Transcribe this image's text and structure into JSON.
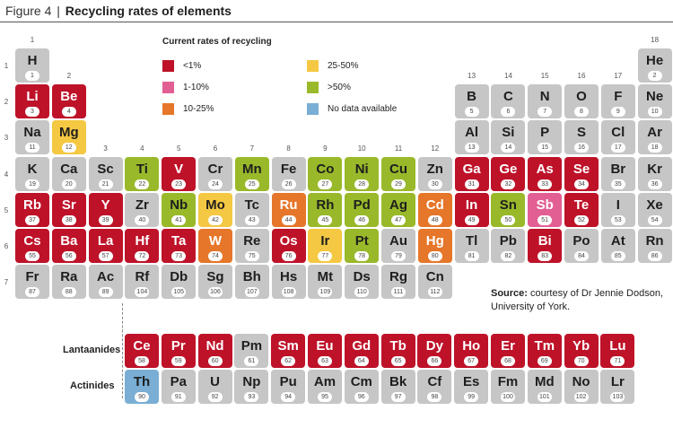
{
  "title": {
    "figure": "Figure 4",
    "separator": "|",
    "text": "Recycling rates of elements"
  },
  "legend": {
    "title": "Current rates of recycling",
    "items": [
      {
        "key": "r",
        "label": "<1%",
        "color": "#be1229"
      },
      {
        "key": "p",
        "label": "1-10%",
        "color": "#e25f94"
      },
      {
        "key": "o",
        "label": "10-25%",
        "color": "#e5762a"
      },
      {
        "key": "y",
        "label": "25-50%",
        "color": "#f4c842"
      },
      {
        "key": "g",
        "label": ">50%",
        "color": "#99b92a"
      },
      {
        "key": "b",
        "label": "No data available",
        "color": "#7aaed4"
      }
    ]
  },
  "default_color": "#c6c6c6",
  "group_labels": [
    "1",
    "2",
    "3",
    "4",
    "5",
    "6",
    "7",
    "8",
    "9",
    "10",
    "11",
    "12",
    "13",
    "14",
    "15",
    "16",
    "17",
    "18"
  ],
  "period_labels": [
    "1",
    "2",
    "3",
    "4",
    "5",
    "6",
    "7"
  ],
  "elements": [
    {
      "s": "H",
      "n": 1,
      "p": 1,
      "g": 1,
      "c": ""
    },
    {
      "s": "He",
      "n": 2,
      "p": 1,
      "g": 18,
      "c": ""
    },
    {
      "s": "Li",
      "n": 3,
      "p": 2,
      "g": 1,
      "c": "r"
    },
    {
      "s": "Be",
      "n": 4,
      "p": 2,
      "g": 2,
      "c": "r"
    },
    {
      "s": "B",
      "n": 5,
      "p": 2,
      "g": 13,
      "c": ""
    },
    {
      "s": "C",
      "n": 6,
      "p": 2,
      "g": 14,
      "c": ""
    },
    {
      "s": "N",
      "n": 7,
      "p": 2,
      "g": 15,
      "c": ""
    },
    {
      "s": "O",
      "n": 8,
      "p": 2,
      "g": 16,
      "c": ""
    },
    {
      "s": "F",
      "n": 9,
      "p": 2,
      "g": 17,
      "c": ""
    },
    {
      "s": "Ne",
      "n": 10,
      "p": 2,
      "g": 18,
      "c": ""
    },
    {
      "s": "Na",
      "n": 11,
      "p": 3,
      "g": 1,
      "c": ""
    },
    {
      "s": "Mg",
      "n": 12,
      "p": 3,
      "g": 2,
      "c": "y"
    },
    {
      "s": "Al",
      "n": 13,
      "p": 3,
      "g": 13,
      "c": ""
    },
    {
      "s": "Si",
      "n": 14,
      "p": 3,
      "g": 14,
      "c": ""
    },
    {
      "s": "P",
      "n": 15,
      "p": 3,
      "g": 15,
      "c": ""
    },
    {
      "s": "S",
      "n": 16,
      "p": 3,
      "g": 16,
      "c": ""
    },
    {
      "s": "Cl",
      "n": 17,
      "p": 3,
      "g": 17,
      "c": ""
    },
    {
      "s": "Ar",
      "n": 18,
      "p": 3,
      "g": 18,
      "c": ""
    },
    {
      "s": "K",
      "n": 19,
      "p": 4,
      "g": 1,
      "c": ""
    },
    {
      "s": "Ca",
      "n": 20,
      "p": 4,
      "g": 2,
      "c": ""
    },
    {
      "s": "Sc",
      "n": 21,
      "p": 4,
      "g": 3,
      "c": ""
    },
    {
      "s": "Ti",
      "n": 22,
      "p": 4,
      "g": 4,
      "c": "g"
    },
    {
      "s": "V",
      "n": 23,
      "p": 4,
      "g": 5,
      "c": "r"
    },
    {
      "s": "Cr",
      "n": 24,
      "p": 4,
      "g": 6,
      "c": ""
    },
    {
      "s": "Mn",
      "n": 25,
      "p": 4,
      "g": 7,
      "c": "g"
    },
    {
      "s": "Fe",
      "n": 26,
      "p": 4,
      "g": 8,
      "c": ""
    },
    {
      "s": "Co",
      "n": 27,
      "p": 4,
      "g": 9,
      "c": "g"
    },
    {
      "s": "Ni",
      "n": 28,
      "p": 4,
      "g": 10,
      "c": "g"
    },
    {
      "s": "Cu",
      "n": 29,
      "p": 4,
      "g": 11,
      "c": "g"
    },
    {
      "s": "Zn",
      "n": 30,
      "p": 4,
      "g": 12,
      "c": ""
    },
    {
      "s": "Ga",
      "n": 31,
      "p": 4,
      "g": 13,
      "c": "r"
    },
    {
      "s": "Ge",
      "n": 32,
      "p": 4,
      "g": 14,
      "c": "r"
    },
    {
      "s": "As",
      "n": 33,
      "p": 4,
      "g": 15,
      "c": "r"
    },
    {
      "s": "Se",
      "n": 34,
      "p": 4,
      "g": 16,
      "c": "r"
    },
    {
      "s": "Br",
      "n": 35,
      "p": 4,
      "g": 17,
      "c": ""
    },
    {
      "s": "Kr",
      "n": 36,
      "p": 4,
      "g": 18,
      "c": ""
    },
    {
      "s": "Rb",
      "n": 37,
      "p": 5,
      "g": 1,
      "c": "r"
    },
    {
      "s": "Sr",
      "n": 38,
      "p": 5,
      "g": 2,
      "c": "r"
    },
    {
      "s": "Y",
      "n": 39,
      "p": 5,
      "g": 3,
      "c": "r"
    },
    {
      "s": "Zr",
      "n": 40,
      "p": 5,
      "g": 4,
      "c": ""
    },
    {
      "s": "Nb",
      "n": 41,
      "p": 5,
      "g": 5,
      "c": "g"
    },
    {
      "s": "Mo",
      "n": 42,
      "p": 5,
      "g": 6,
      "c": "y"
    },
    {
      "s": "Tc",
      "n": 43,
      "p": 5,
      "g": 7,
      "c": ""
    },
    {
      "s": "Ru",
      "n": 44,
      "p": 5,
      "g": 8,
      "c": "o"
    },
    {
      "s": "Rh",
      "n": 45,
      "p": 5,
      "g": 9,
      "c": "g"
    },
    {
      "s": "Pd",
      "n": 46,
      "p": 5,
      "g": 10,
      "c": "g"
    },
    {
      "s": "Ag",
      "n": 47,
      "p": 5,
      "g": 11,
      "c": "g"
    },
    {
      "s": "Cd",
      "n": 48,
      "p": 5,
      "g": 12,
      "c": "o"
    },
    {
      "s": "In",
      "n": 49,
      "p": 5,
      "g": 13,
      "c": "r"
    },
    {
      "s": "Sn",
      "n": 50,
      "p": 5,
      "g": 14,
      "c": "g"
    },
    {
      "s": "Sb",
      "n": 51,
      "p": 5,
      "g": 15,
      "c": "p"
    },
    {
      "s": "Te",
      "n": 52,
      "p": 5,
      "g": 16,
      "c": "r"
    },
    {
      "s": "I",
      "n": 53,
      "p": 5,
      "g": 17,
      "c": ""
    },
    {
      "s": "Xe",
      "n": 54,
      "p": 5,
      "g": 18,
      "c": ""
    },
    {
      "s": "Cs",
      "n": 55,
      "p": 6,
      "g": 1,
      "c": "r"
    },
    {
      "s": "Ba",
      "n": 56,
      "p": 6,
      "g": 2,
      "c": "r"
    },
    {
      "s": "La",
      "n": 57,
      "p": 6,
      "g": 3,
      "c": "r"
    },
    {
      "s": "Hf",
      "n": 72,
      "p": 6,
      "g": 4,
      "c": "r"
    },
    {
      "s": "Ta",
      "n": 73,
      "p": 6,
      "g": 5,
      "c": "r"
    },
    {
      "s": "W",
      "n": 74,
      "p": 6,
      "g": 6,
      "c": "o"
    },
    {
      "s": "Re",
      "n": 75,
      "p": 6,
      "g": 7,
      "c": ""
    },
    {
      "s": "Os",
      "n": 76,
      "p": 6,
      "g": 8,
      "c": "r"
    },
    {
      "s": "Ir",
      "n": 77,
      "p": 6,
      "g": 9,
      "c": "y"
    },
    {
      "s": "Pt",
      "n": 78,
      "p": 6,
      "g": 10,
      "c": "g"
    },
    {
      "s": "Au",
      "n": 79,
      "p": 6,
      "g": 11,
      "c": ""
    },
    {
      "s": "Hg",
      "n": 80,
      "p": 6,
      "g": 12,
      "c": "o"
    },
    {
      "s": "Tl",
      "n": 81,
      "p": 6,
      "g": 13,
      "c": ""
    },
    {
      "s": "Pb",
      "n": 82,
      "p": 6,
      "g": 14,
      "c": ""
    },
    {
      "s": "Bi",
      "n": 83,
      "p": 6,
      "g": 15,
      "c": "r"
    },
    {
      "s": "Po",
      "n": 84,
      "p": 6,
      "g": 16,
      "c": ""
    },
    {
      "s": "At",
      "n": 85,
      "p": 6,
      "g": 17,
      "c": ""
    },
    {
      "s": "Rn",
      "n": 86,
      "p": 6,
      "g": 18,
      "c": ""
    },
    {
      "s": "Fr",
      "n": 87,
      "p": 7,
      "g": 1,
      "c": ""
    },
    {
      "s": "Ra",
      "n": 88,
      "p": 7,
      "g": 2,
      "c": ""
    },
    {
      "s": "Ac",
      "n": 89,
      "p": 7,
      "g": 3,
      "c": ""
    },
    {
      "s": "Rf",
      "n": 104,
      "p": 7,
      "g": 4,
      "c": ""
    },
    {
      "s": "Db",
      "n": 105,
      "g": 5,
      "p": 7,
      "c": ""
    },
    {
      "s": "Sg",
      "n": 106,
      "p": 7,
      "g": 6,
      "c": ""
    },
    {
      "s": "Bh",
      "n": 107,
      "p": 7,
      "g": 7,
      "c": ""
    },
    {
      "s": "Hs",
      "n": 108,
      "p": 7,
      "g": 8,
      "c": ""
    },
    {
      "s": "Mt",
      "n": 109,
      "p": 7,
      "g": 9,
      "c": ""
    },
    {
      "s": "Ds",
      "n": 110,
      "p": 7,
      "g": 10,
      "c": ""
    },
    {
      "s": "Rg",
      "n": 111,
      "p": 7,
      "g": 11,
      "c": ""
    },
    {
      "s": "Cn",
      "n": 112,
      "p": 7,
      "g": 12,
      "c": ""
    }
  ],
  "series_rows": [
    {
      "label": "Lantaanides",
      "items": [
        {
          "s": "Ce",
          "n": 58,
          "c": "r"
        },
        {
          "s": "Pr",
          "n": 59,
          "c": "r"
        },
        {
          "s": "Nd",
          "n": 60,
          "c": "r"
        },
        {
          "s": "Pm",
          "n": 61,
          "c": ""
        },
        {
          "s": "Sm",
          "n": 62,
          "c": "r"
        },
        {
          "s": "Eu",
          "n": 63,
          "c": "r"
        },
        {
          "s": "Gd",
          "n": 64,
          "c": "r"
        },
        {
          "s": "Tb",
          "n": 65,
          "c": "r"
        },
        {
          "s": "Dy",
          "n": 66,
          "c": "r"
        },
        {
          "s": "Ho",
          "n": 67,
          "c": "r"
        },
        {
          "s": "Er",
          "n": 68,
          "c": "r"
        },
        {
          "s": "Tm",
          "n": 69,
          "c": "r"
        },
        {
          "s": "Yb",
          "n": 70,
          "c": "r"
        },
        {
          "s": "Lu",
          "n": 71,
          "c": "r"
        }
      ]
    },
    {
      "label": "Actinides",
      "items": [
        {
          "s": "Th",
          "n": 90,
          "c": "b"
        },
        {
          "s": "Pa",
          "n": 91,
          "c": ""
        },
        {
          "s": "U",
          "n": 92,
          "c": ""
        },
        {
          "s": "Np",
          "n": 93,
          "c": ""
        },
        {
          "s": "Pu",
          "n": 94,
          "c": ""
        },
        {
          "s": "Am",
          "n": 95,
          "c": ""
        },
        {
          "s": "Cm",
          "n": 96,
          "c": ""
        },
        {
          "s": "Bk",
          "n": 97,
          "c": ""
        },
        {
          "s": "Cf",
          "n": 98,
          "c": ""
        },
        {
          "s": "Es",
          "n": 99,
          "c": ""
        },
        {
          "s": "Fm",
          "n": 100,
          "c": ""
        },
        {
          "s": "Md",
          "n": 101,
          "c": ""
        },
        {
          "s": "No",
          "n": 102,
          "c": ""
        },
        {
          "s": "Lr",
          "n": 103,
          "c": ""
        }
      ]
    }
  ],
  "source": {
    "label": "Source:",
    "text": "courtesy of Dr Jennie Dodson, University of York."
  }
}
